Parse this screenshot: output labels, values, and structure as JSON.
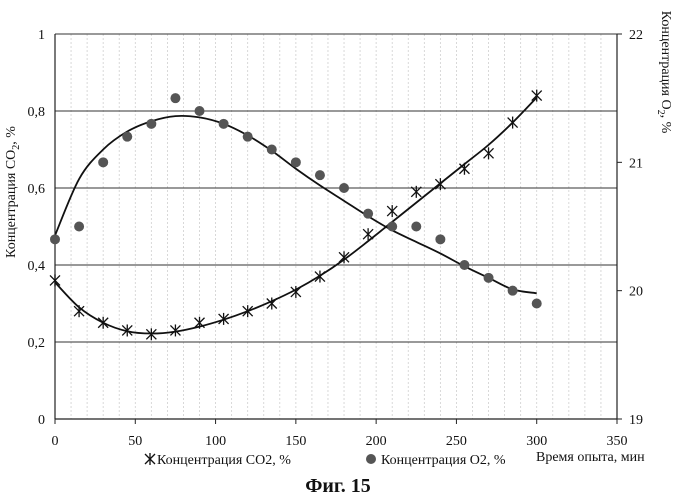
{
  "chart_data": {
    "type": "scatter",
    "caption": "Фиг. 15",
    "xlabel": "Время опыта, мин",
    "x_ticks": [
      0,
      50,
      100,
      150,
      200,
      250,
      300,
      350
    ],
    "xlim": [
      0,
      350
    ],
    "x_minor_step": 10,
    "ylabel_left_main": "Концентрация CO",
    "ylabel_left_sub": "2",
    "ylabel_left_tail": ", %",
    "ylim_left": [
      0,
      1
    ],
    "y_ticks_left": [
      "0",
      "0,2",
      "0,4",
      "0,6",
      "0,8",
      "1"
    ],
    "ylabel_right_main": "Концентрация O",
    "ylabel_right_sub": "2",
    "ylabel_right_tail": ", %",
    "ylim_right": [
      19,
      22
    ],
    "y_ticks_right": [
      "19",
      "20",
      "21",
      "22"
    ],
    "grid": "major horizontal, minor vertical",
    "series": [
      {
        "name": "Концентрация CO2, %",
        "marker": "asterisk",
        "axis": "left",
        "color": "#111111",
        "x": [
          0,
          15,
          30,
          45,
          60,
          75,
          90,
          105,
          120,
          135,
          150,
          165,
          180,
          195,
          210,
          225,
          240,
          255,
          270,
          285,
          300
        ],
        "y": [
          0.36,
          0.28,
          0.25,
          0.23,
          0.22,
          0.23,
          0.25,
          0.26,
          0.28,
          0.3,
          0.33,
          0.37,
          0.42,
          0.48,
          0.54,
          0.59,
          0.61,
          0.65,
          0.69,
          0.77,
          0.84
        ],
        "trend": [
          [
            0,
            0.355
          ],
          [
            15,
            0.29
          ],
          [
            30,
            0.25
          ],
          [
            45,
            0.228
          ],
          [
            60,
            0.222
          ],
          [
            75,
            0.227
          ],
          [
            90,
            0.24
          ],
          [
            105,
            0.258
          ],
          [
            120,
            0.28
          ],
          [
            135,
            0.306
          ],
          [
            150,
            0.336
          ],
          [
            165,
            0.372
          ],
          [
            180,
            0.414
          ],
          [
            195,
            0.462
          ],
          [
            210,
            0.512
          ],
          [
            225,
            0.562
          ],
          [
            240,
            0.612
          ],
          [
            255,
            0.662
          ],
          [
            270,
            0.712
          ],
          [
            285,
            0.77
          ],
          [
            300,
            0.835
          ]
        ]
      },
      {
        "name": "Концентрация O2, %",
        "marker": "circle",
        "axis": "right",
        "color": "#555555",
        "x": [
          0,
          15,
          30,
          45,
          60,
          75,
          90,
          105,
          120,
          135,
          150,
          165,
          180,
          195,
          210,
          225,
          240,
          255,
          270,
          285,
          300
        ],
        "y": [
          20.4,
          20.5,
          21.0,
          21.2,
          21.3,
          21.5,
          21.4,
          21.3,
          21.2,
          21.1,
          21.0,
          20.9,
          20.8,
          20.6,
          20.5,
          20.5,
          20.4,
          20.2,
          20.1,
          20.0,
          19.9
        ],
        "trend": [
          [
            0,
            20.43
          ],
          [
            15,
            20.87
          ],
          [
            30,
            21.1
          ],
          [
            45,
            21.24
          ],
          [
            60,
            21.32
          ],
          [
            75,
            21.36
          ],
          [
            90,
            21.35
          ],
          [
            105,
            21.3
          ],
          [
            120,
            21.21
          ],
          [
            135,
            21.09
          ],
          [
            150,
            20.95
          ],
          [
            165,
            20.82
          ],
          [
            180,
            20.7
          ],
          [
            195,
            20.58
          ],
          [
            210,
            20.47
          ],
          [
            225,
            20.38
          ],
          [
            240,
            20.29
          ],
          [
            255,
            20.19
          ],
          [
            270,
            20.1
          ],
          [
            285,
            20.01
          ],
          [
            300,
            19.98
          ]
        ]
      }
    ]
  }
}
